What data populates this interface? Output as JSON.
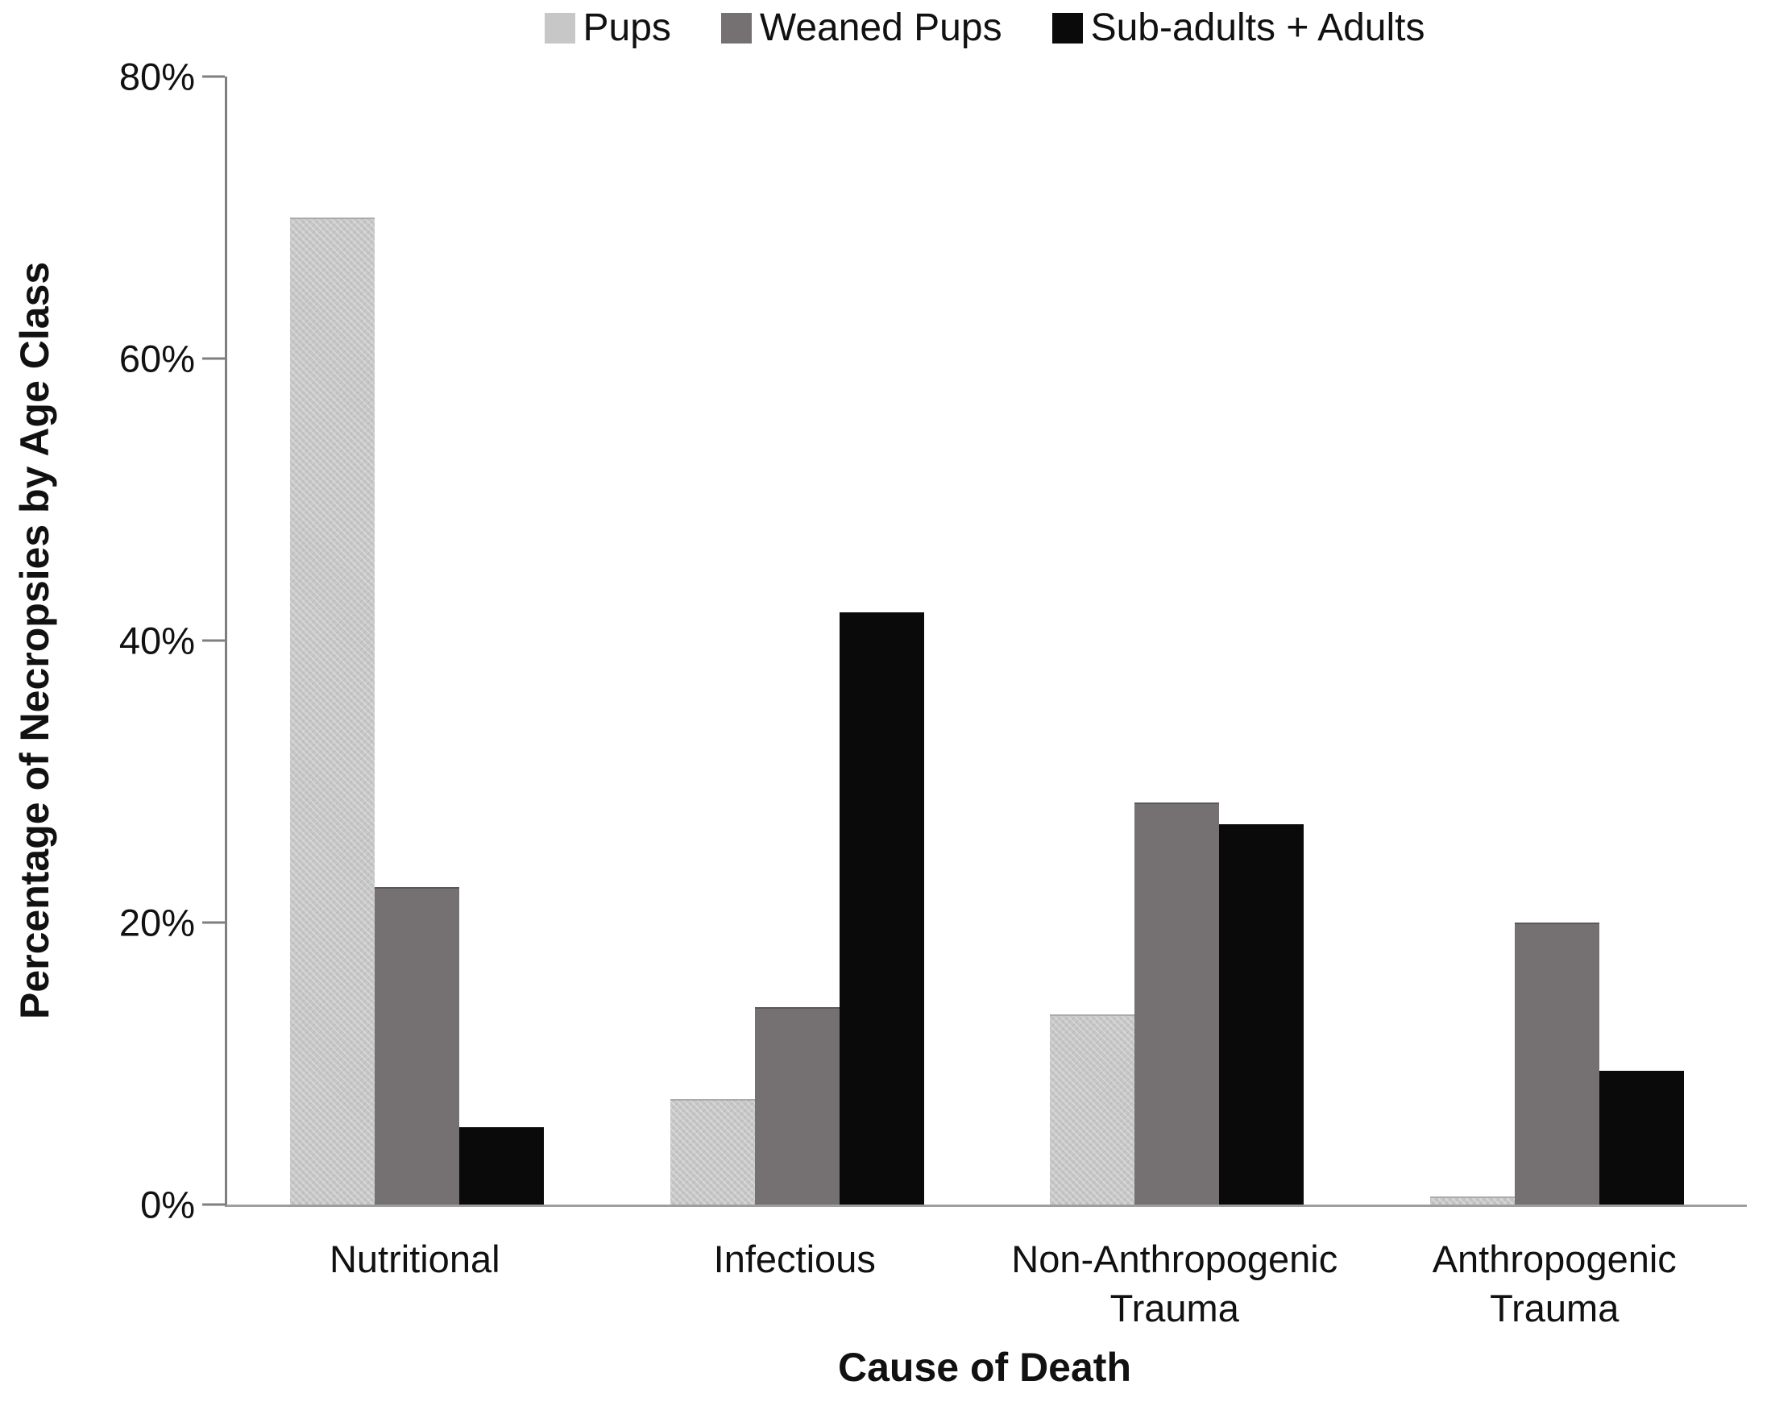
{
  "chart_data": {
    "type": "bar",
    "title": "",
    "xlabel": "Cause of Death",
    "ylabel": "Percentage of Necropsies by Age Class",
    "ylim": [
      0,
      80
    ],
    "yticks": [
      0,
      20,
      40,
      60,
      80
    ],
    "ytick_suffix": "%",
    "grid": false,
    "legend_position": "top-center",
    "categories": [
      "Nutritional",
      "Infectious",
      "Non-Anthropogenic Trauma",
      "Anthropogenic Trauma"
    ],
    "category_label_lines": [
      [
        "Nutritional"
      ],
      [
        "Infectious"
      ],
      [
        "Non-Anthropogenic",
        "Trauma"
      ],
      [
        "Anthropogenic",
        "Trauma"
      ]
    ],
    "series": [
      {
        "name": "Pups",
        "color": "#c7c7c7",
        "values": [
          70,
          7.5,
          13.5,
          0.6
        ]
      },
      {
        "name": "Weaned Pups",
        "color": "#757071",
        "values": [
          22.5,
          14,
          28.5,
          20
        ]
      },
      {
        "name": "Sub-adults + Adults",
        "color": "#0a0a0a",
        "values": [
          5.5,
          42,
          27,
          9.5
        ]
      }
    ],
    "axis_color": "#7f7f7f",
    "baseline_color": "#9e9e9e"
  }
}
